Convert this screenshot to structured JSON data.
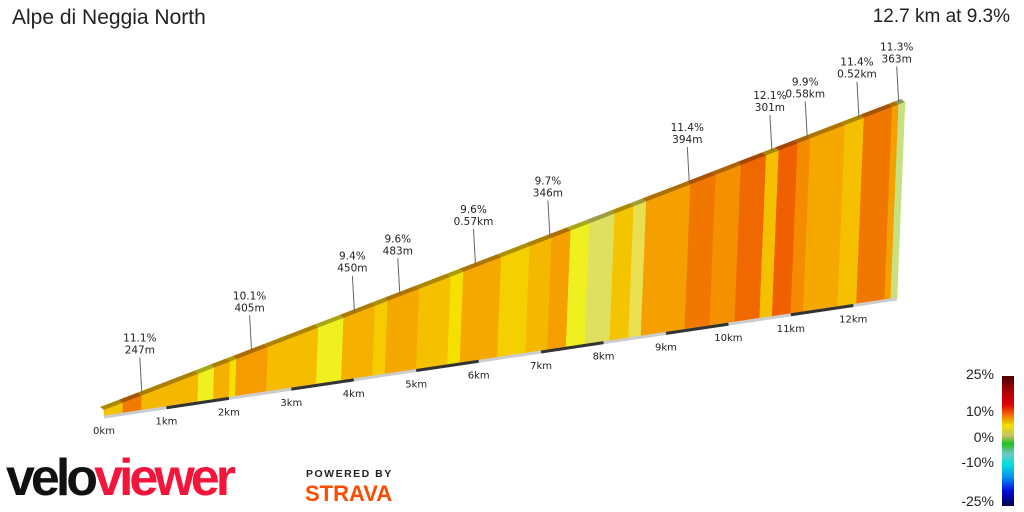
{
  "header": {
    "title": "Alpe di Neggia North",
    "summary": "12.7 km at 9.3%"
  },
  "profile": {
    "total_km": 12.7,
    "km_labels": [
      "0km",
      "1km",
      "2km",
      "3km",
      "4km",
      "5km",
      "6km",
      "7km",
      "8km",
      "9km",
      "10km",
      "11km",
      "12km"
    ],
    "segments": [
      {
        "to_km": 0.3,
        "color": "#f5c400"
      },
      {
        "to_km": 0.6,
        "color": "#f07a00"
      },
      {
        "to_km": 1.5,
        "color": "#f5b800"
      },
      {
        "to_km": 1.75,
        "color": "#f0f020"
      },
      {
        "to_km": 2.0,
        "color": "#f5b000"
      },
      {
        "to_km": 2.1,
        "color": "#f5e000"
      },
      {
        "to_km": 2.6,
        "color": "#f59c00"
      },
      {
        "to_km": 3.4,
        "color": "#f5bc00"
      },
      {
        "to_km": 3.8,
        "color": "#f0f020"
      },
      {
        "to_km": 4.3,
        "color": "#f5b000"
      },
      {
        "to_km": 4.5,
        "color": "#f5cc00"
      },
      {
        "to_km": 5.0,
        "color": "#f5a800"
      },
      {
        "to_km": 5.5,
        "color": "#f5c000"
      },
      {
        "to_km": 5.7,
        "color": "#f5e000"
      },
      {
        "to_km": 6.3,
        "color": "#f5a800"
      },
      {
        "to_km": 6.75,
        "color": "#f5d000"
      },
      {
        "to_km": 7.1,
        "color": "#f5b800"
      },
      {
        "to_km": 7.4,
        "color": "#f5a000"
      },
      {
        "to_km": 7.7,
        "color": "#f0f020"
      },
      {
        "to_km": 8.1,
        "color": "#e0e060"
      },
      {
        "to_km": 8.4,
        "color": "#f5c400"
      },
      {
        "to_km": 8.6,
        "color": "#e8e050"
      },
      {
        "to_km": 9.3,
        "color": "#f5a000"
      },
      {
        "to_km": 9.7,
        "color": "#f07800"
      },
      {
        "to_km": 10.1,
        "color": "#f59000"
      },
      {
        "to_km": 10.5,
        "color": "#f06800"
      },
      {
        "to_km": 10.7,
        "color": "#f5c000"
      },
      {
        "to_km": 11.0,
        "color": "#f06000"
      },
      {
        "to_km": 11.2,
        "color": "#f58c00"
      },
      {
        "to_km": 11.75,
        "color": "#f5a800"
      },
      {
        "to_km": 12.05,
        "color": "#f5c000"
      },
      {
        "to_km": 12.5,
        "color": "#f07800"
      },
      {
        "to_km": 12.6,
        "color": "#f5a000"
      },
      {
        "to_km": 12.7,
        "color": "#c8e080"
      }
    ],
    "markers": [
      {
        "km": 0.6,
        "grade": "11.1%",
        "length": "247m"
      },
      {
        "km": 2.34,
        "grade": "10.1%",
        "length": "405m"
      },
      {
        "km": 3.97,
        "grade": "9.4%",
        "length": "450m"
      },
      {
        "km": 4.69,
        "grade": "9.6%",
        "length": "483m"
      },
      {
        "km": 5.89,
        "grade": "9.6%",
        "length": "0.57km"
      },
      {
        "km": 7.07,
        "grade": "9.7%",
        "length": "346m"
      },
      {
        "km": 9.28,
        "grade": "11.4%",
        "length": "394m"
      },
      {
        "km": 10.59,
        "grade": "12.1%",
        "length": "301m"
      },
      {
        "km": 11.15,
        "grade": "9.9%",
        "length": "0.58km"
      },
      {
        "km": 11.97,
        "grade": "11.4%",
        "length": "0.52km"
      },
      {
        "km": 12.6,
        "grade": "11.3%",
        "length": "363m"
      }
    ]
  },
  "legend": {
    "ticks": [
      "25%",
      "10%",
      "0%",
      "-10%",
      "-25%"
    ]
  },
  "branding": {
    "logo_part1": "velo",
    "logo_part2": "viewer",
    "powered_by": "POWERED BY",
    "strava": "STRAVA"
  }
}
